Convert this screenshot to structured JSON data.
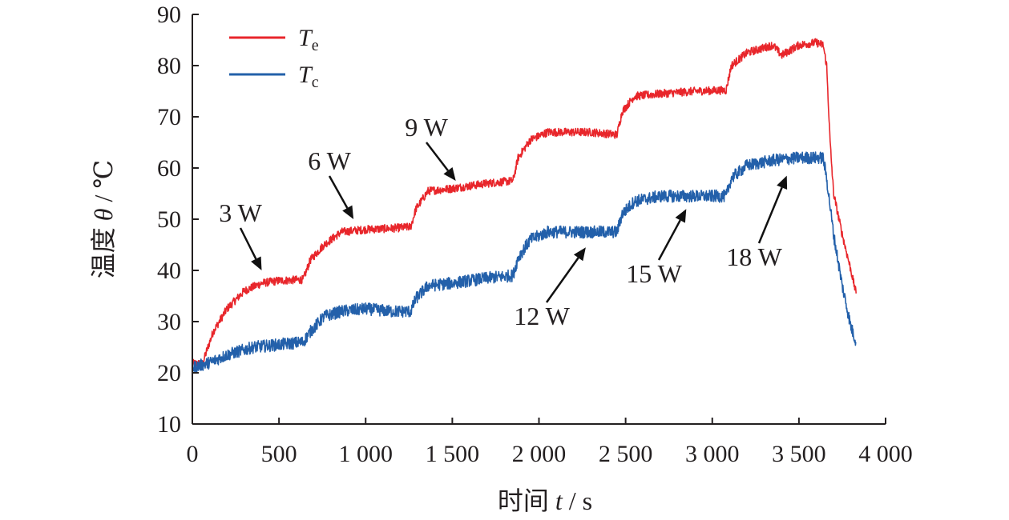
{
  "chart_data": {
    "type": "line",
    "xlabel": {
      "prefix": "时间 ",
      "var": "t",
      "suffix": " / s"
    },
    "ylabel": {
      "prefix": "温度 ",
      "var": "θ",
      "suffix": " / ℃"
    },
    "xlim": [
      0,
      4000
    ],
    "ylim": [
      10,
      90
    ],
    "x_ticks": [
      0,
      500,
      1000,
      1500,
      2000,
      2500,
      3000,
      3500,
      4000
    ],
    "x_tick_labels": [
      "0",
      "500",
      "1 000",
      "1 500",
      "2 000",
      "2 500",
      "3 000",
      "3 500",
      "4 000"
    ],
    "y_ticks": [
      10,
      20,
      30,
      40,
      50,
      60,
      70,
      80,
      90
    ],
    "y_tick_labels": [
      "10",
      "20",
      "30",
      "40",
      "50",
      "60",
      "70",
      "80",
      "90"
    ],
    "grid": false,
    "legend_position": "top-left",
    "series": [
      {
        "name": "Te",
        "label_main": "T",
        "label_sub": "e",
        "color": "#e8262b",
        "noise": 0.8,
        "points": [
          [
            0,
            21.8
          ],
          [
            60,
            21.8
          ],
          [
            80,
            24
          ],
          [
            120,
            28
          ],
          [
            200,
            32.5
          ],
          [
            300,
            36
          ],
          [
            400,
            37.5
          ],
          [
            500,
            38
          ],
          [
            640,
            38.2
          ],
          [
            680,
            42
          ],
          [
            760,
            45
          ],
          [
            860,
            47.5
          ],
          [
            1000,
            48
          ],
          [
            1150,
            48.2
          ],
          [
            1260,
            48.5
          ],
          [
            1290,
            52
          ],
          [
            1360,
            55.5
          ],
          [
            1500,
            56
          ],
          [
            1700,
            57
          ],
          [
            1850,
            57.5
          ],
          [
            1880,
            62
          ],
          [
            1950,
            65.5
          ],
          [
            2050,
            67
          ],
          [
            2300,
            67
          ],
          [
            2450,
            66.5
          ],
          [
            2480,
            71
          ],
          [
            2550,
            74
          ],
          [
            2700,
            74.5
          ],
          [
            2900,
            75
          ],
          [
            3080,
            75.2
          ],
          [
            3110,
            80
          ],
          [
            3200,
            82.5
          ],
          [
            3350,
            84
          ],
          [
            3400,
            82
          ],
          [
            3500,
            84
          ],
          [
            3600,
            84.5
          ],
          [
            3640,
            84
          ],
          [
            3660,
            80
          ],
          [
            3680,
            65
          ],
          [
            3700,
            55
          ],
          [
            3750,
            47
          ],
          [
            3800,
            40
          ],
          [
            3830,
            35.5
          ]
        ]
      },
      {
        "name": "Tc",
        "label_main": "T",
        "label_sub": "c",
        "color": "#2360aa",
        "noise": 1.2,
        "points": [
          [
            0,
            21
          ],
          [
            100,
            22
          ],
          [
            200,
            23.5
          ],
          [
            350,
            25
          ],
          [
            500,
            25.5
          ],
          [
            640,
            26
          ],
          [
            680,
            28
          ],
          [
            760,
            31
          ],
          [
            860,
            32
          ],
          [
            1000,
            32.5
          ],
          [
            1150,
            32
          ],
          [
            1260,
            32
          ],
          [
            1290,
            34.5
          ],
          [
            1360,
            37
          ],
          [
            1500,
            37.5
          ],
          [
            1700,
            38.5
          ],
          [
            1850,
            39
          ],
          [
            1880,
            42.5
          ],
          [
            1950,
            46
          ],
          [
            2050,
            47.5
          ],
          [
            2300,
            47.5
          ],
          [
            2450,
            47.5
          ],
          [
            2480,
            51
          ],
          [
            2550,
            53.5
          ],
          [
            2700,
            54.5
          ],
          [
            2900,
            54.5
          ],
          [
            3080,
            54.5
          ],
          [
            3110,
            58
          ],
          [
            3200,
            60.5
          ],
          [
            3350,
            61.5
          ],
          [
            3500,
            62
          ],
          [
            3640,
            62
          ],
          [
            3660,
            58
          ],
          [
            3700,
            47
          ],
          [
            3750,
            37
          ],
          [
            3800,
            29
          ],
          [
            3830,
            26
          ]
        ]
      }
    ],
    "annotations": [
      {
        "text": "3 W",
        "tip": [
          400,
          40
        ]
      },
      {
        "text": "6 W",
        "tip": [
          930,
          50
        ]
      },
      {
        "text": "9 W",
        "tip": [
          1520,
          57.5
        ]
      },
      {
        "text": "12 W",
        "tip": [
          2270,
          44.5
        ]
      },
      {
        "text": "15 W",
        "tip": [
          2850,
          52
        ]
      },
      {
        "text": "18 W",
        "tip": [
          3430,
          58.5
        ]
      }
    ]
  }
}
